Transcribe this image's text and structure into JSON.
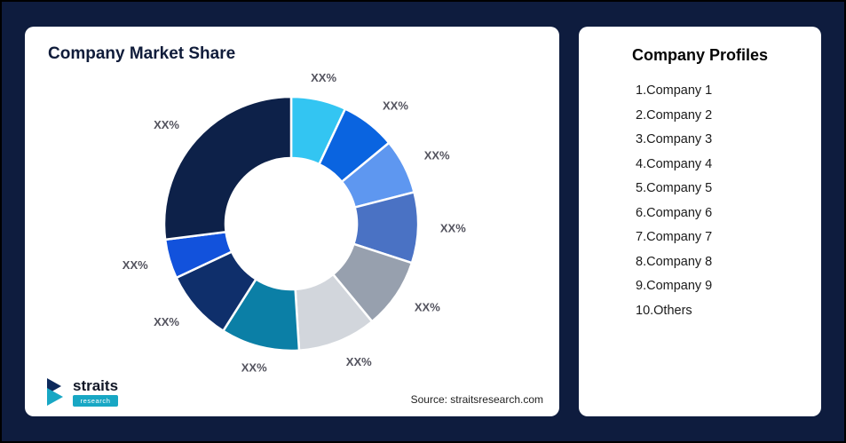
{
  "theme": {
    "background": "#0E1C3E",
    "card_background": "#FFFFFF",
    "title_color": "#101C3A",
    "slice_label_color": "#53535E"
  },
  "left_card": {
    "title": "Company Market Share",
    "source": "Source: straitsresearch.com"
  },
  "logo": {
    "name": "straits",
    "sub": "research",
    "icon_navy": "#0E2A5C",
    "icon_teal": "#18A7C4"
  },
  "right_card": {
    "title": "Company Profiles",
    "items": [
      "1.Company 1",
      "2.Company 2",
      "3.Company 3",
      "4.Company 4",
      "5.Company 5",
      "6.Company 6",
      "7.Company 7",
      "8.Company 8",
      "9.Company 9",
      "10.Others"
    ]
  },
  "chart_data": {
    "type": "pie",
    "title": "Company Market Share",
    "donut": true,
    "start_angle_deg": 0,
    "direction": "clockwise",
    "labels": [
      "XX%",
      "XX%",
      "XX%",
      "XX%",
      "XX%",
      "XX%",
      "XX%",
      "XX%",
      "XX%",
      "XX%"
    ],
    "values_est_pct": [
      7,
      7,
      7,
      9,
      9,
      10,
      10,
      9,
      5,
      27
    ],
    "colors": [
      "#33C5F2",
      "#0A64E0",
      "#5E97F0",
      "#4A72C4",
      "#97A0AE",
      "#D2D6DC",
      "#0B7FA6",
      "#0F2F6B",
      "#1252DC",
      "#0D2149"
    ],
    "legend": "none",
    "note_source": "Source: straitsresearch.com"
  }
}
